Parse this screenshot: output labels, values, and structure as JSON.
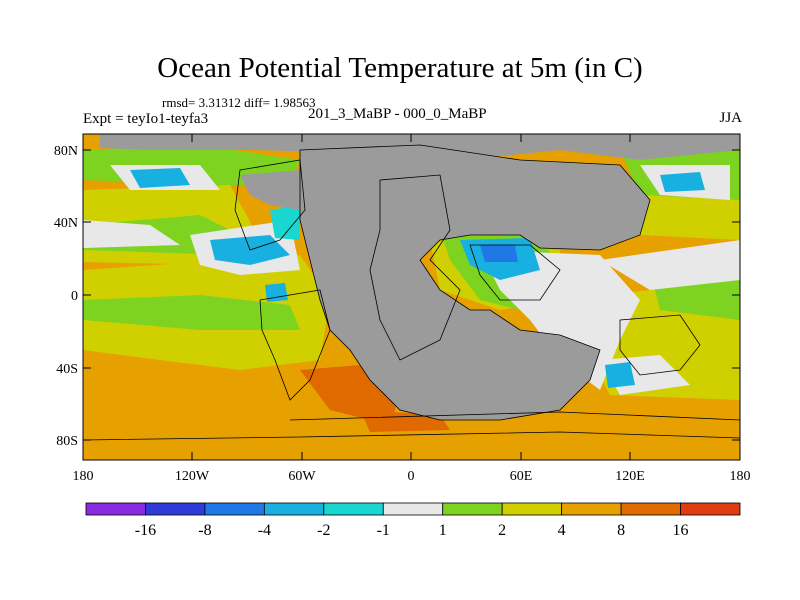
{
  "title": "Ocean Potential Temperature at 5m (in C)",
  "stats": "rmsd= 3.31312 diff= 1.98563",
  "experiment": "Expt = teyIo1-teyfa3",
  "period": "201_3_MaBP - 000_0_MaBP",
  "season": "JJA",
  "y_ticks": [
    "80N",
    "40N",
    "0",
    "40S",
    "80S"
  ],
  "x_ticks": [
    "180",
    "120W",
    "60W",
    "0",
    "60E",
    "120E",
    "180"
  ],
  "colorbar": {
    "colors": [
      "#8a2be2",
      "#2e3bd8",
      "#1f78e6",
      "#17b0e0",
      "#19d6d0",
      "#e8e8e8",
      "#7ed321",
      "#d0d000",
      "#e6a000",
      "#e06a00",
      "#e03c10"
    ],
    "labels": [
      "-16",
      "-8",
      "-4",
      "-2",
      "-1",
      "1",
      "2",
      "4",
      "8",
      "16"
    ]
  },
  "colors": {
    "land": "#9b9b9b",
    "background_anomaly": "#e6a000"
  }
}
